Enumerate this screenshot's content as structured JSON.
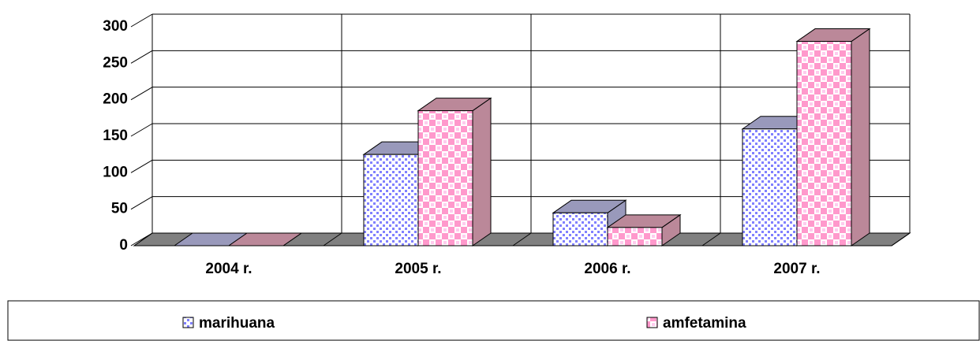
{
  "chart_data": {
    "type": "bar3d",
    "categories": [
      "2004 r.",
      "2005 r.",
      "2006 r.",
      "2007 r."
    ],
    "series": [
      {
        "name": "marihuana",
        "color": "#8080ff",
        "values": [
          0,
          125,
          45,
          160
        ]
      },
      {
        "name": "amfetamina",
        "color": "#ff99cc",
        "values": [
          0,
          185,
          25,
          280
        ]
      }
    ],
    "ylim": [
      0,
      300
    ],
    "yticks": [
      0,
      50,
      100,
      150,
      200,
      250,
      300
    ],
    "grid": true,
    "legend": "bottom"
  }
}
